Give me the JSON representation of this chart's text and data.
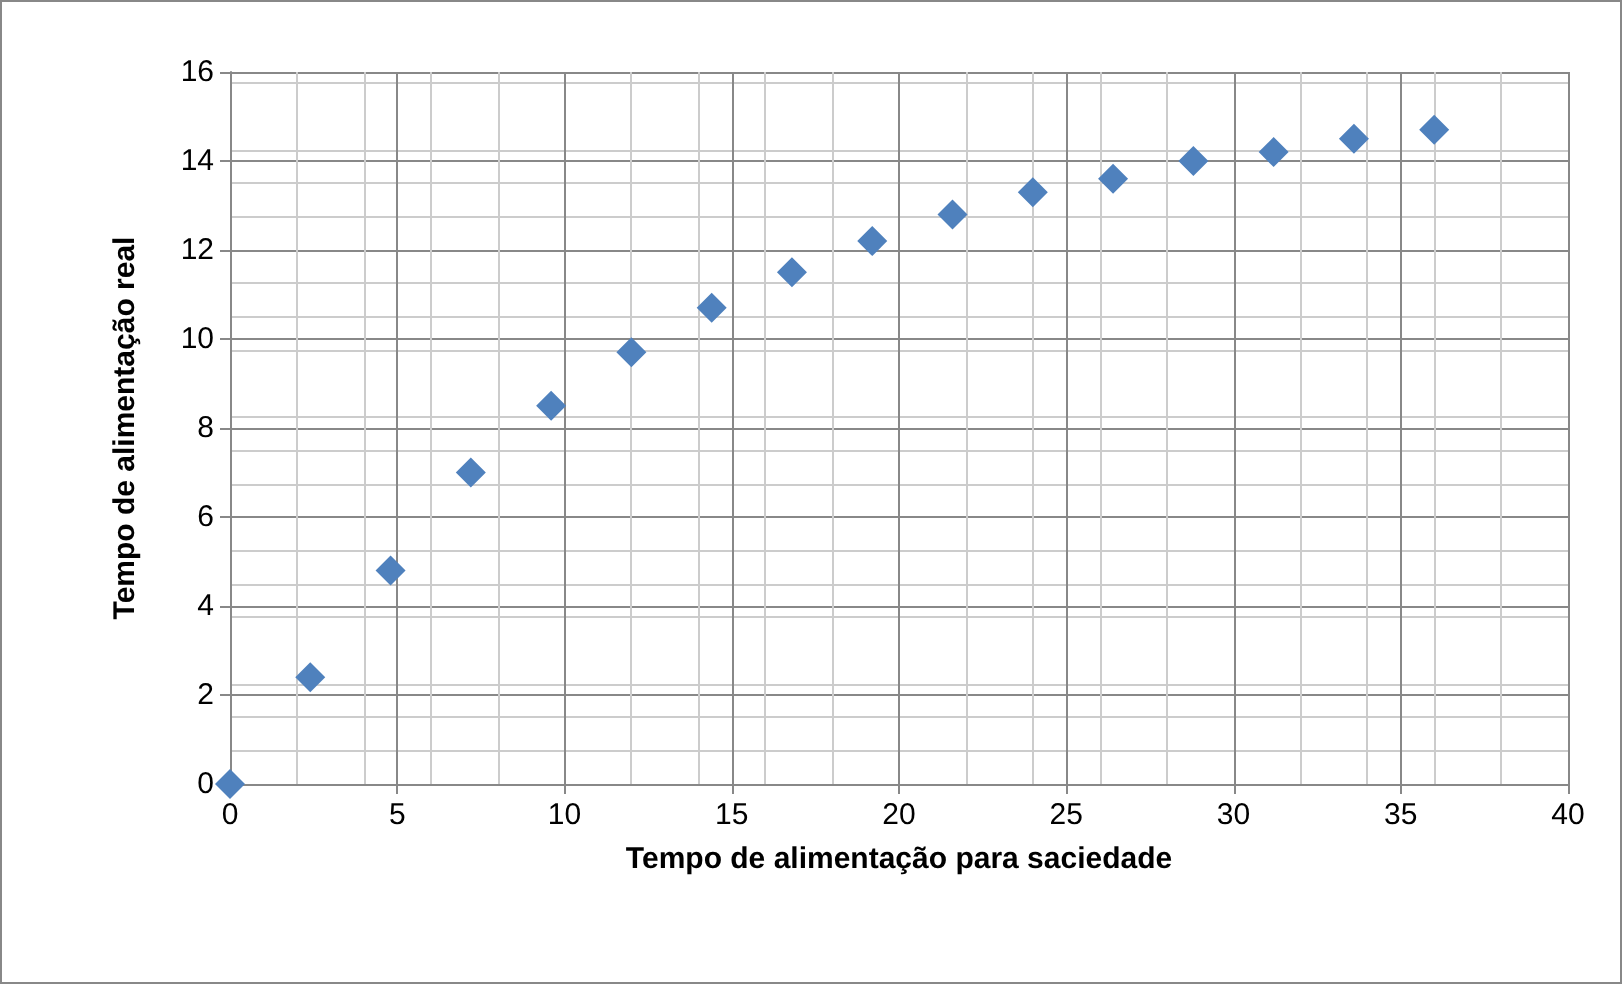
{
  "chart_data": {
    "type": "scatter",
    "xlabel": "Tempo de alimentação para saciedade",
    "ylabel": "Tempo de alimentação real",
    "x": [
      0,
      2.4,
      4.8,
      7.2,
      9.6,
      12,
      14.4,
      16.8,
      19.2,
      21.6,
      24,
      26.4,
      28.8,
      31.2,
      33.6,
      36
    ],
    "series": [
      {
        "color": "#4f81bd",
        "values": [
          0,
          2.4,
          4.8,
          7.0,
          8.5,
          9.7,
          10.7,
          11.5,
          12.2,
          12.8,
          13.3,
          13.6,
          14.0,
          14.2,
          14.5,
          14.7
        ]
      }
    ],
    "xlim": [
      0,
      40
    ],
    "xticks": [
      0,
      5,
      10,
      15,
      20,
      25,
      30,
      35,
      40
    ],
    "ylim": [
      0,
      16
    ],
    "yticks": [
      0,
      2,
      4,
      6,
      8,
      10,
      12,
      14,
      16
    ],
    "grid": true,
    "marker": "diamond"
  }
}
